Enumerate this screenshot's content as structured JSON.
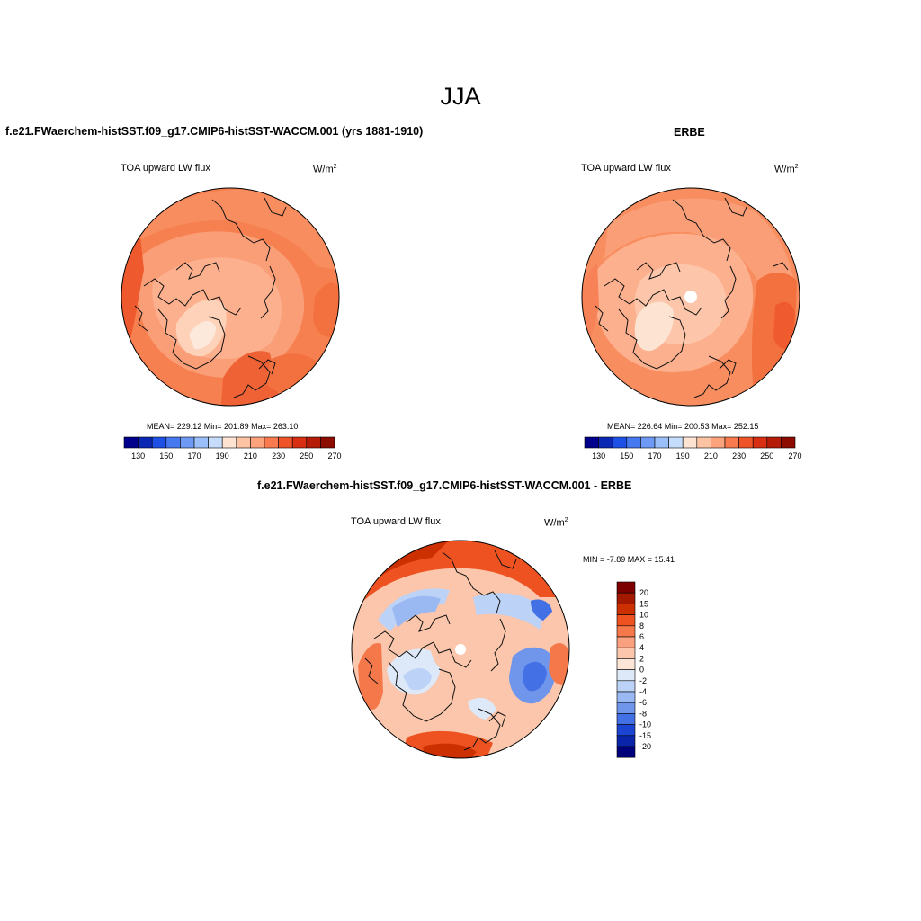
{
  "figure": {
    "title": "JJA"
  },
  "panels": [
    {
      "id": "model",
      "title": "f.e21.FWaerchem-histSST.f09_g17.CMIP6-histSST-WACCM.001 (yrs 1881-1910)",
      "variable": "TOA upward LW flux",
      "units_base": "W/m",
      "units_exp": "2",
      "stats": "MEAN= 229.12  Min= 201.89  Max= 263.10",
      "stats_values": {
        "mean": 229.12,
        "min": 201.89,
        "max": 263.1
      },
      "colorbar_ticks": [
        "130",
        "150",
        "170",
        "190",
        "210",
        "230",
        "250",
        "270"
      ]
    },
    {
      "id": "obs",
      "title": "ERBE",
      "variable": "TOA upward LW flux",
      "units_base": "W/m",
      "units_exp": "2",
      "stats": "MEAN= 226.64  Min= 200.53  Max= 252.15",
      "stats_values": {
        "mean": 226.64,
        "min": 200.53,
        "max": 252.15
      },
      "colorbar_ticks": [
        "130",
        "150",
        "170",
        "190",
        "210",
        "230",
        "250",
        "270"
      ]
    },
    {
      "id": "diff",
      "title": "f.e21.FWaerchem-histSST.f09_g17.CMIP6-histSST-WACCM.001 - ERBE",
      "variable": "TOA upward LW flux",
      "units_base": "W/m",
      "units_exp": "2",
      "stats": "MIN =  -7.89 MAX =  15.41",
      "stats_values": {
        "min": -7.89,
        "max": 15.41
      },
      "colorbar_labels": [
        "20",
        "15",
        "10",
        "8",
        "6",
        "4",
        "2",
        "0",
        "-2",
        "-4",
        "-6",
        "-8",
        "-10",
        "-15",
        "-20"
      ]
    }
  ],
  "colors": {
    "absolute_scale": [
      "#00008c",
      "#0a28b4",
      "#1e50e6",
      "#4678ef",
      "#6e9af5",
      "#9abff9",
      "#c6dcfb",
      "#fde4d2",
      "#fdc4a4",
      "#fca27c",
      "#f97a4e",
      "#ef5328",
      "#d82e12",
      "#b41c08",
      "#8c0c00"
    ],
    "diff_scale": [
      "#7d0000",
      "#a31800",
      "#cc3000",
      "#ee5220",
      "#f5784a",
      "#f9a07e",
      "#fbc6ab",
      "#fde6d8",
      "#dde8f8",
      "#bcd2f6",
      "#9ab8f2",
      "#7096ec",
      "#4470e6",
      "#1c44d2",
      "#0a24aa",
      "#00007a"
    ]
  }
}
